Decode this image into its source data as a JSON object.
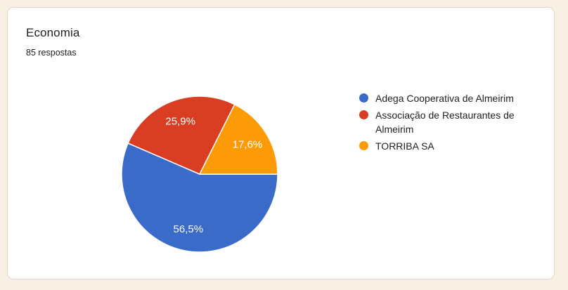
{
  "page": {
    "background_color": "#F6EFE2",
    "card_background": "#FFFFFF"
  },
  "card": {
    "title": "Economia",
    "responses_label": "85 respostas"
  },
  "chart_data": {
    "type": "pie",
    "title": "Economia",
    "subtitle": "85 respostas",
    "legend_position": "right",
    "direction": "clockwise",
    "start_angle_deg_clockwise_from_top": 90,
    "slice_label_color": "#FFFFFF",
    "series": [
      {
        "name": "Adega Cooperativa de Almeirim",
        "percent": 56.5,
        "label": "56,5%",
        "color": "#3B6BC9"
      },
      {
        "name": "Associação de Restaurantes de Almeirim",
        "percent": 25.9,
        "label": "25,9%",
        "color": "#D93D22"
      },
      {
        "name": "TORRIBA SA",
        "percent": 17.6,
        "label": "17,6%",
        "color": "#FD9A08"
      }
    ]
  }
}
